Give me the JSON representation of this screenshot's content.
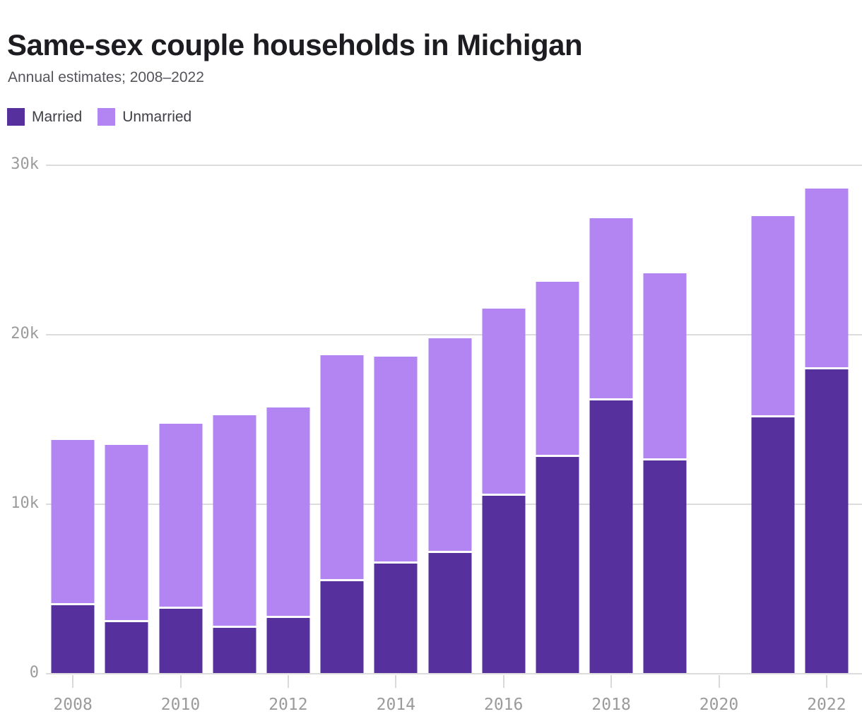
{
  "header": {
    "title": "Same-sex couple households in Michigan",
    "subtitle": "Annual estimates; 2008–2022"
  },
  "legend": {
    "items": [
      {
        "label": "Married",
        "color": "#56319e"
      },
      {
        "label": "Unmarried",
        "color": "#b385f2"
      }
    ]
  },
  "colors": {
    "married": "#56319e",
    "unmarried": "#b385f2",
    "gridline": "#dcdcdc",
    "axis_text": "#9b9b9b",
    "title_text": "#1c1c21",
    "subtitle_text": "#55555c",
    "segment_separator": "#ffffff"
  },
  "chart_data": {
    "type": "bar",
    "stacked": true,
    "title": "Same-sex couple households in Michigan",
    "subtitle": "Annual estimates; 2008–2022",
    "categories": [
      2008,
      2009,
      2010,
      2011,
      2012,
      2013,
      2014,
      2015,
      2016,
      2017,
      2018,
      2019,
      2020,
      2021,
      2022
    ],
    "series": [
      {
        "name": "Married",
        "color": "#56319e",
        "values": [
          4000,
          3000,
          3800,
          2650,
          3250,
          5400,
          6450,
          7100,
          10450,
          12750,
          16100,
          12550,
          null,
          15100,
          17900
        ]
      },
      {
        "name": "Unmarried",
        "color": "#b385f2",
        "values": [
          9750,
          10450,
          10900,
          12550,
          12400,
          13350,
          12200,
          12650,
          11050,
          10350,
          10750,
          11050,
          null,
          11850,
          10700
        ]
      }
    ],
    "ylim": [
      0,
      30000
    ],
    "yticks": [
      {
        "label": "30k",
        "value": 30000
      },
      {
        "label": "20k",
        "value": 20000
      },
      {
        "label": "10k",
        "value": 10000
      },
      {
        "label": "0",
        "value": 0
      }
    ],
    "xticks": [
      "2008",
      "2010",
      "2012",
      "2014",
      "2016",
      "2018",
      "2020",
      "2022"
    ],
    "grid": true,
    "legend_position": "top-left",
    "notes": "No bar shown for 2020"
  }
}
